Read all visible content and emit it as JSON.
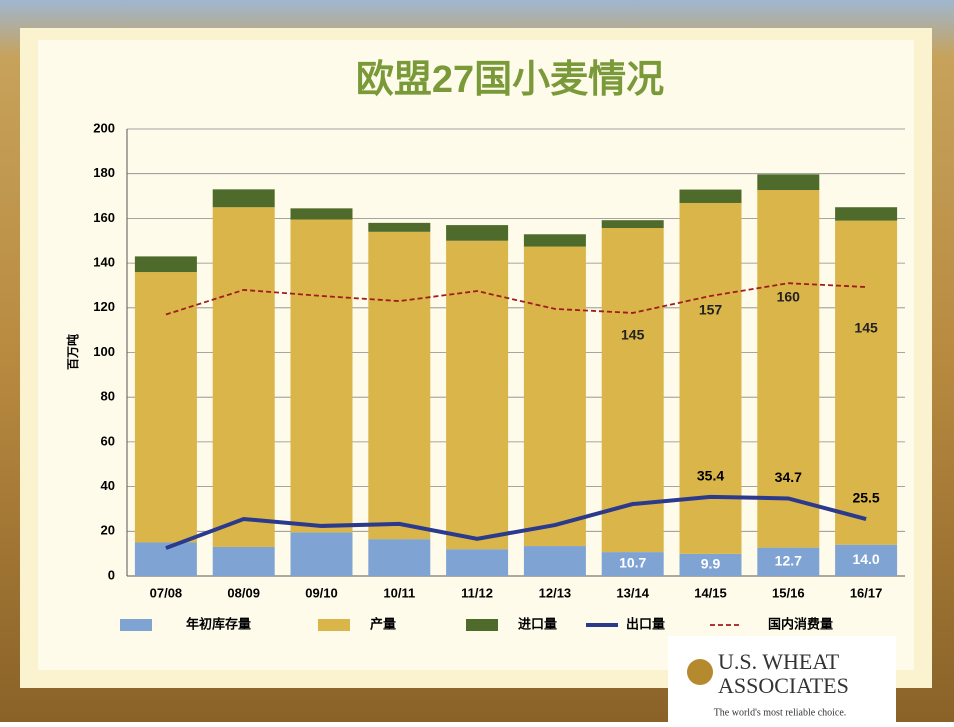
{
  "chart_data": {
    "type": "bar",
    "title": "欧盟27国小麦情况",
    "y_label": "百万吨",
    "categories": [
      "07/08",
      "08/09",
      "09/10",
      "10/11",
      "11/12",
      "12/13",
      "13/14",
      "14/15",
      "15/16",
      "16/17"
    ],
    "ylim": [
      0,
      200
    ],
    "yticks": [
      0,
      20,
      40,
      60,
      80,
      100,
      120,
      140,
      160,
      180,
      200
    ],
    "grid": true,
    "series": [
      {
        "name": "年初库存量",
        "kind": "bar",
        "color": "#7fa4d4",
        "values": [
          15,
          13,
          19.5,
          16.5,
          12,
          13.4,
          10.7,
          9.9,
          12.7,
          14.0
        ],
        "value_labels": [
          null,
          null,
          null,
          null,
          null,
          null,
          "10.7",
          "9.9",
          "12.7",
          "14.0"
        ]
      },
      {
        "name": "产量",
        "kind": "bar",
        "color": "#d9b54a",
        "values": [
          121,
          152,
          140,
          137.5,
          138,
          134,
          145,
          157,
          160,
          145
        ],
        "value_labels": [
          null,
          null,
          null,
          null,
          null,
          null,
          "145",
          "157",
          "160",
          "145"
        ]
      },
      {
        "name": "进口量",
        "kind": "bar",
        "color": "#4e6b2c",
        "values": [
          7,
          8,
          5,
          4,
          7,
          5.5,
          3.5,
          6,
          7,
          6
        ]
      },
      {
        "name": "出口量",
        "kind": "line",
        "color": "#2b3a8c",
        "values": [
          12.5,
          25.5,
          22.4,
          23.3,
          16.6,
          22.8,
          32.2,
          35.4,
          34.7,
          25.5
        ],
        "value_labels": [
          null,
          null,
          null,
          null,
          null,
          null,
          null,
          "35.4",
          "34.7",
          "25.5"
        ]
      },
      {
        "name": "国内消费量",
        "kind": "dashed",
        "color": "#a01c1c",
        "values": [
          117,
          128,
          125.3,
          123,
          127.5,
          119.5,
          117.7,
          125.3,
          131,
          129.3
        ]
      }
    ]
  },
  "logo": {
    "name_line1": "U.S. WHEAT",
    "name_line2": "ASSOCIATES",
    "tagline": "The world's most reliable choice."
  }
}
